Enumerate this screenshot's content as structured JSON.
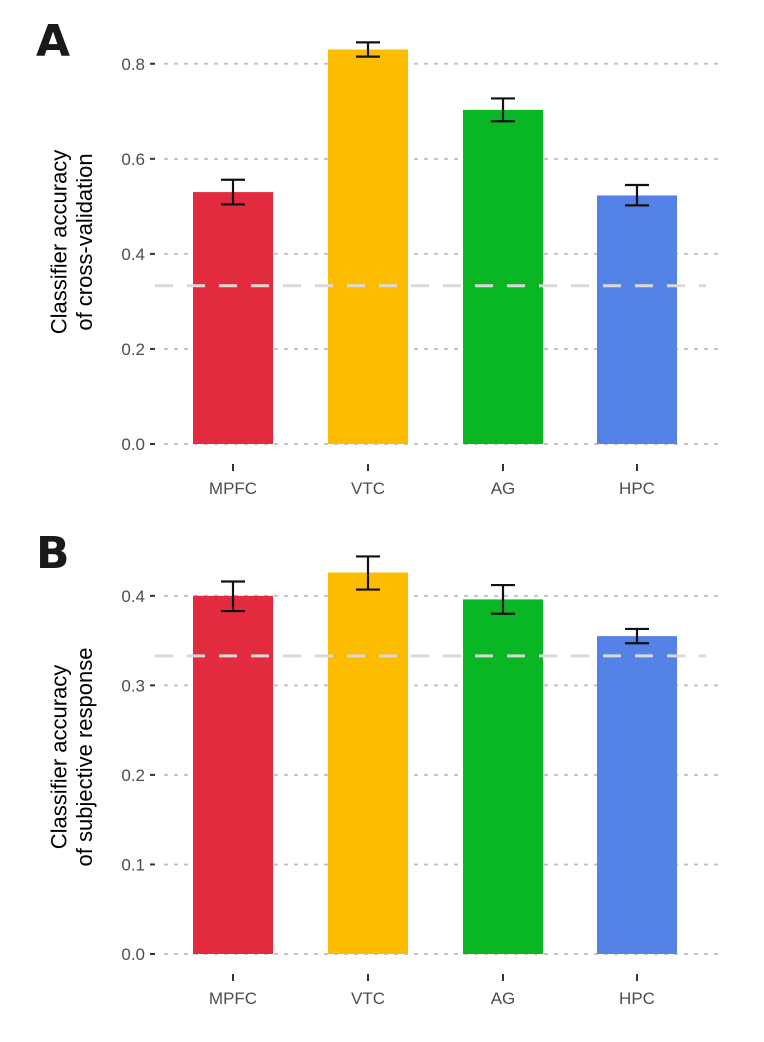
{
  "chart_data": [
    {
      "type": "bar",
      "panel_label": "A",
      "ylabel_lines": [
        "Classifier accuracy",
        "of cross-validation"
      ],
      "categories": [
        "MPFC",
        "VTC",
        "AG",
        "HPC"
      ],
      "values": [
        0.53,
        0.83,
        0.703,
        0.523
      ],
      "error_low": [
        0.504,
        0.815,
        0.679,
        0.502
      ],
      "error_high": [
        0.556,
        0.845,
        0.727,
        0.545
      ],
      "colors": [
        "#e22b3e",
        "#fcbd00",
        "#09b624",
        "#5482e6"
      ],
      "ylim": [
        0,
        0.85
      ],
      "yticks": [
        0.0,
        0.2,
        0.4,
        0.6,
        0.8
      ],
      "ytick_labels": [
        "0.0",
        "0.2",
        "0.4",
        "0.6",
        "0.8"
      ],
      "chance_level": 0.333,
      "grid": true
    },
    {
      "type": "bar",
      "panel_label": "B",
      "ylabel_lines": [
        "Classifier accuracy",
        "of subjective response"
      ],
      "categories": [
        "MPFC",
        "VTC",
        "AG",
        "HPC"
      ],
      "values": [
        0.4,
        0.426,
        0.396,
        0.355
      ],
      "error_low": [
        0.383,
        0.407,
        0.38,
        0.347
      ],
      "error_high": [
        0.416,
        0.444,
        0.412,
        0.363
      ],
      "colors": [
        "#e22b3e",
        "#fcbd00",
        "#09b624",
        "#5482e6"
      ],
      "ylim": [
        0,
        0.44
      ],
      "yticks": [
        0.0,
        0.1,
        0.2,
        0.3,
        0.4
      ],
      "ytick_labels": [
        "0.0",
        "0.1",
        "0.2",
        "0.3",
        "0.4"
      ],
      "chance_level": 0.333,
      "grid": true
    }
  ]
}
